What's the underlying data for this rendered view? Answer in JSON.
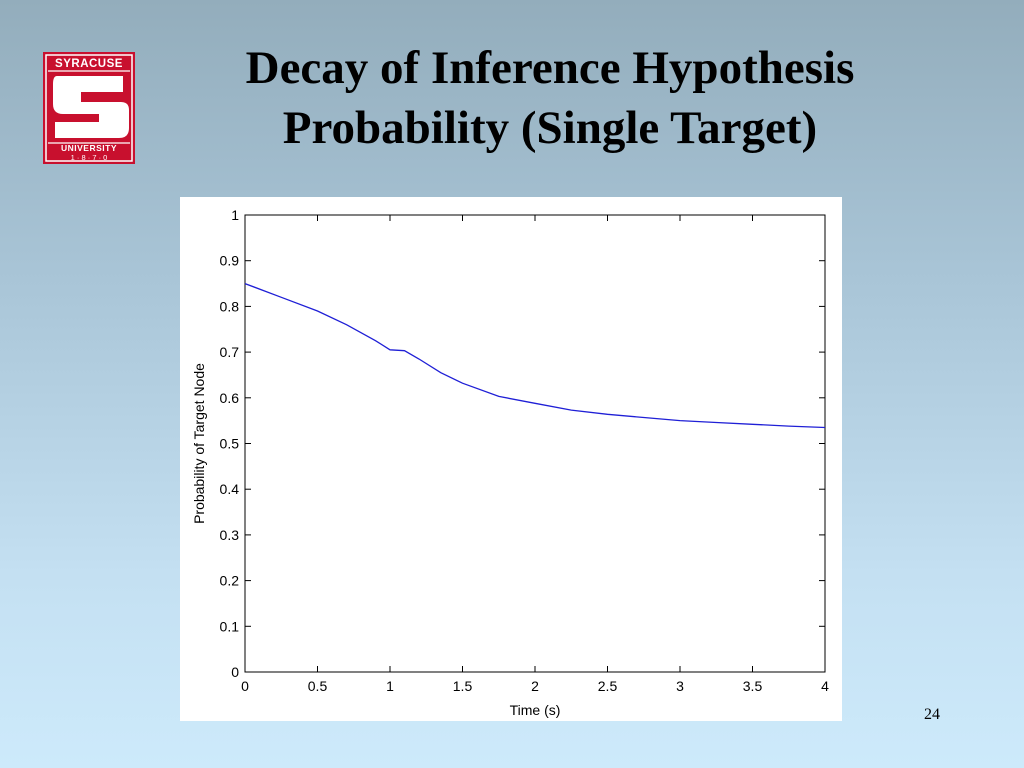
{
  "logo": {
    "top_text": "SYRACUSE",
    "bottom_text": "UNIVERSITY",
    "year_text": "1 · 8 · 7 · 0",
    "color": "#c8102e"
  },
  "slide": {
    "title_line1": "Decay of Inference Hypothesis",
    "title_line2": "Probability (Single Target)",
    "page_number": "24"
  },
  "chart_data": {
    "type": "line",
    "title": "",
    "xlabel": "Time (s)",
    "ylabel": "Probability of Target Node",
    "xlim": [
      0,
      4
    ],
    "ylim": [
      0,
      1
    ],
    "xticks": [
      0,
      0.5,
      1,
      1.5,
      2,
      2.5,
      3,
      3.5,
      4
    ],
    "xtick_labels": [
      "0",
      "0.5",
      "1",
      "1.5",
      "2",
      "2.5",
      "3",
      "3.5",
      "4"
    ],
    "yticks": [
      0,
      0.1,
      0.2,
      0.3,
      0.4,
      0.5,
      0.6,
      0.7,
      0.8,
      0.9,
      1
    ],
    "ytick_labels": [
      "0",
      "0.1",
      "0.2",
      "0.3",
      "0.4",
      "0.5",
      "0.6",
      "0.7",
      "0.8",
      "0.9",
      "1"
    ],
    "grid": false,
    "line_color": "#1f1fd6",
    "series": [
      {
        "x": [
          0,
          0.25,
          0.5,
          0.7,
          0.9,
          1.0,
          1.1,
          1.2,
          1.35,
          1.5,
          1.75,
          2.0,
          2.25,
          2.5,
          2.75,
          3.0,
          3.25,
          3.5,
          3.75,
          4.0
        ],
        "y": [
          0.85,
          0.82,
          0.79,
          0.76,
          0.725,
          0.705,
          0.703,
          0.685,
          0.655,
          0.632,
          0.603,
          0.588,
          0.573,
          0.564,
          0.557,
          0.55,
          0.546,
          0.542,
          0.538,
          0.535
        ]
      }
    ]
  }
}
